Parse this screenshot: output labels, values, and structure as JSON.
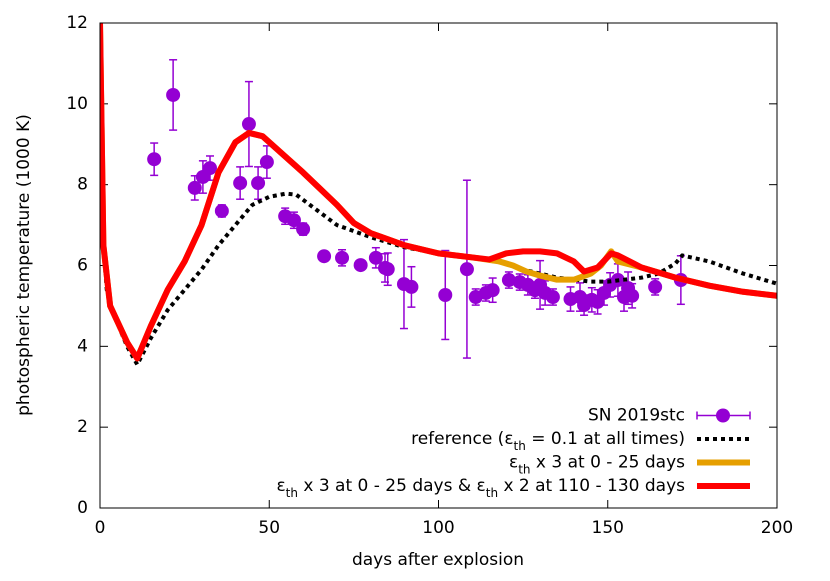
{
  "chart_data": {
    "type": "line",
    "x_label": "days after explosion",
    "y_label": "photospheric temperature (1000 K)",
    "xlim": [
      0,
      200
    ],
    "xticks": [
      0,
      50,
      100,
      150,
      200
    ],
    "ylim": [
      0,
      12
    ],
    "yticks": [
      0,
      2,
      4,
      6,
      8,
      10,
      12
    ],
    "legend": "bottom-right",
    "series": [
      {
        "name": "SN 2019stc",
        "type": "scatter",
        "color": "#9400d3",
        "x": [
          16,
          21.6,
          28,
          30.4,
          32.5,
          36,
          41.4,
          44,
          46.7,
          49.3,
          54.7,
          57.3,
          60,
          66.2,
          71.5,
          77,
          81.5,
          84.2,
          85,
          89.8,
          92,
          102,
          108.4,
          111,
          114,
          116,
          120.8,
          124,
          126.4,
          128.5,
          130,
          131.5,
          133.8,
          139,
          141.8,
          143,
          145.3,
          147,
          148.9,
          150.7,
          153,
          154.8,
          156,
          157.2,
          164,
          171.6
        ],
        "values": [
          8.63,
          10.22,
          7.92,
          8.19,
          8.41,
          7.35,
          8.04,
          9.5,
          8.04,
          8.56,
          7.22,
          7.12,
          6.9,
          6.23,
          6.19,
          6.01,
          6.19,
          5.94,
          5.91,
          5.54,
          5.47,
          5.27,
          5.91,
          5.22,
          5.32,
          5.39,
          5.64,
          5.59,
          5.52,
          5.39,
          5.52,
          5.32,
          5.22,
          5.17,
          5.22,
          5.02,
          5.15,
          5.1,
          5.32,
          5.52,
          5.64,
          5.22,
          5.44,
          5.25,
          5.47,
          5.64
        ],
        "errors": [
          0.4,
          0.87,
          0.3,
          0.4,
          0.3,
          0.15,
          0.4,
          1.05,
          0.4,
          0.4,
          0.2,
          0.2,
          0.15,
          0.1,
          0.2,
          0.1,
          0.25,
          0.35,
          0.4,
          1.1,
          0.5,
          1.1,
          2.2,
          0.2,
          0.2,
          0.3,
          0.2,
          0.2,
          0.25,
          0.2,
          0.6,
          0.3,
          0.2,
          0.3,
          0.35,
          0.25,
          0.3,
          0.3,
          0.3,
          0.3,
          0.4,
          0.35,
          0.4,
          0.3,
          0.2,
          0.6
        ]
      },
      {
        "name": "reference (εth = 0.1 at all times)",
        "type": "line",
        "style": "dotted",
        "color": "#000000",
        "x": [
          0,
          0.5,
          1,
          2,
          3,
          5,
          8,
          11,
          15,
          20,
          25,
          30,
          35,
          40,
          45,
          50,
          55,
          58,
          62,
          70,
          80,
          90,
          100,
          110,
          120,
          125,
          130,
          135,
          140,
          145,
          150,
          160,
          165,
          170,
          172,
          180,
          190,
          200
        ],
        "values": [
          12,
          8.5,
          6.5,
          5.4,
          5.0,
          4.6,
          4.0,
          3.55,
          4.2,
          4.9,
          5.4,
          5.9,
          6.5,
          7.0,
          7.5,
          7.7,
          7.78,
          7.75,
          7.5,
          7.0,
          6.7,
          6.45,
          6.3,
          6.2,
          6.05,
          5.9,
          5.8,
          5.7,
          5.65,
          5.6,
          5.6,
          5.7,
          5.8,
          6.05,
          6.25,
          6.1,
          5.8,
          5.55
        ]
      },
      {
        "name": "εth x 3 at 0 - 25 days",
        "type": "line",
        "style": "solid",
        "color": "#e69f00",
        "x": [
          0,
          1,
          3,
          8,
          11,
          15,
          20,
          25,
          30,
          35,
          40,
          44,
          48,
          52,
          56,
          60,
          65,
          70,
          75,
          80,
          90,
          100,
          110,
          118,
          122,
          126,
          130,
          135,
          140,
          145,
          148,
          151,
          153,
          160,
          170,
          180,
          190,
          200
        ],
        "values": [
          12,
          6.5,
          5.0,
          4.1,
          3.7,
          4.5,
          5.4,
          6.1,
          7.0,
          8.3,
          9.05,
          9.28,
          9.2,
          8.9,
          8.6,
          8.3,
          7.9,
          7.5,
          7.05,
          6.8,
          6.5,
          6.3,
          6.2,
          6.1,
          6.0,
          5.85,
          5.75,
          5.65,
          5.65,
          5.8,
          6.0,
          6.35,
          6.1,
          5.95,
          5.7,
          5.5,
          5.35,
          5.25
        ]
      },
      {
        "name": "εth x 3 at 0 - 25 days & εth x 2 at 110 - 130 days",
        "type": "line",
        "style": "solid",
        "color": "#ff0000",
        "x": [
          0,
          1,
          3,
          8,
          11,
          15,
          20,
          25,
          30,
          35,
          40,
          44,
          48,
          52,
          56,
          60,
          65,
          70,
          75,
          80,
          90,
          100,
          110,
          115,
          120,
          125,
          130,
          135,
          140,
          143,
          147,
          151,
          153,
          160,
          170,
          180,
          190,
          200
        ],
        "values": [
          12,
          6.5,
          5.0,
          4.1,
          3.7,
          4.5,
          5.4,
          6.1,
          7.0,
          8.3,
          9.05,
          9.28,
          9.2,
          8.9,
          8.6,
          8.3,
          7.9,
          7.5,
          7.05,
          6.8,
          6.5,
          6.3,
          6.2,
          6.15,
          6.3,
          6.35,
          6.35,
          6.3,
          6.1,
          5.85,
          5.95,
          6.3,
          6.25,
          5.95,
          5.7,
          5.5,
          5.35,
          5.25
        ]
      }
    ]
  }
}
